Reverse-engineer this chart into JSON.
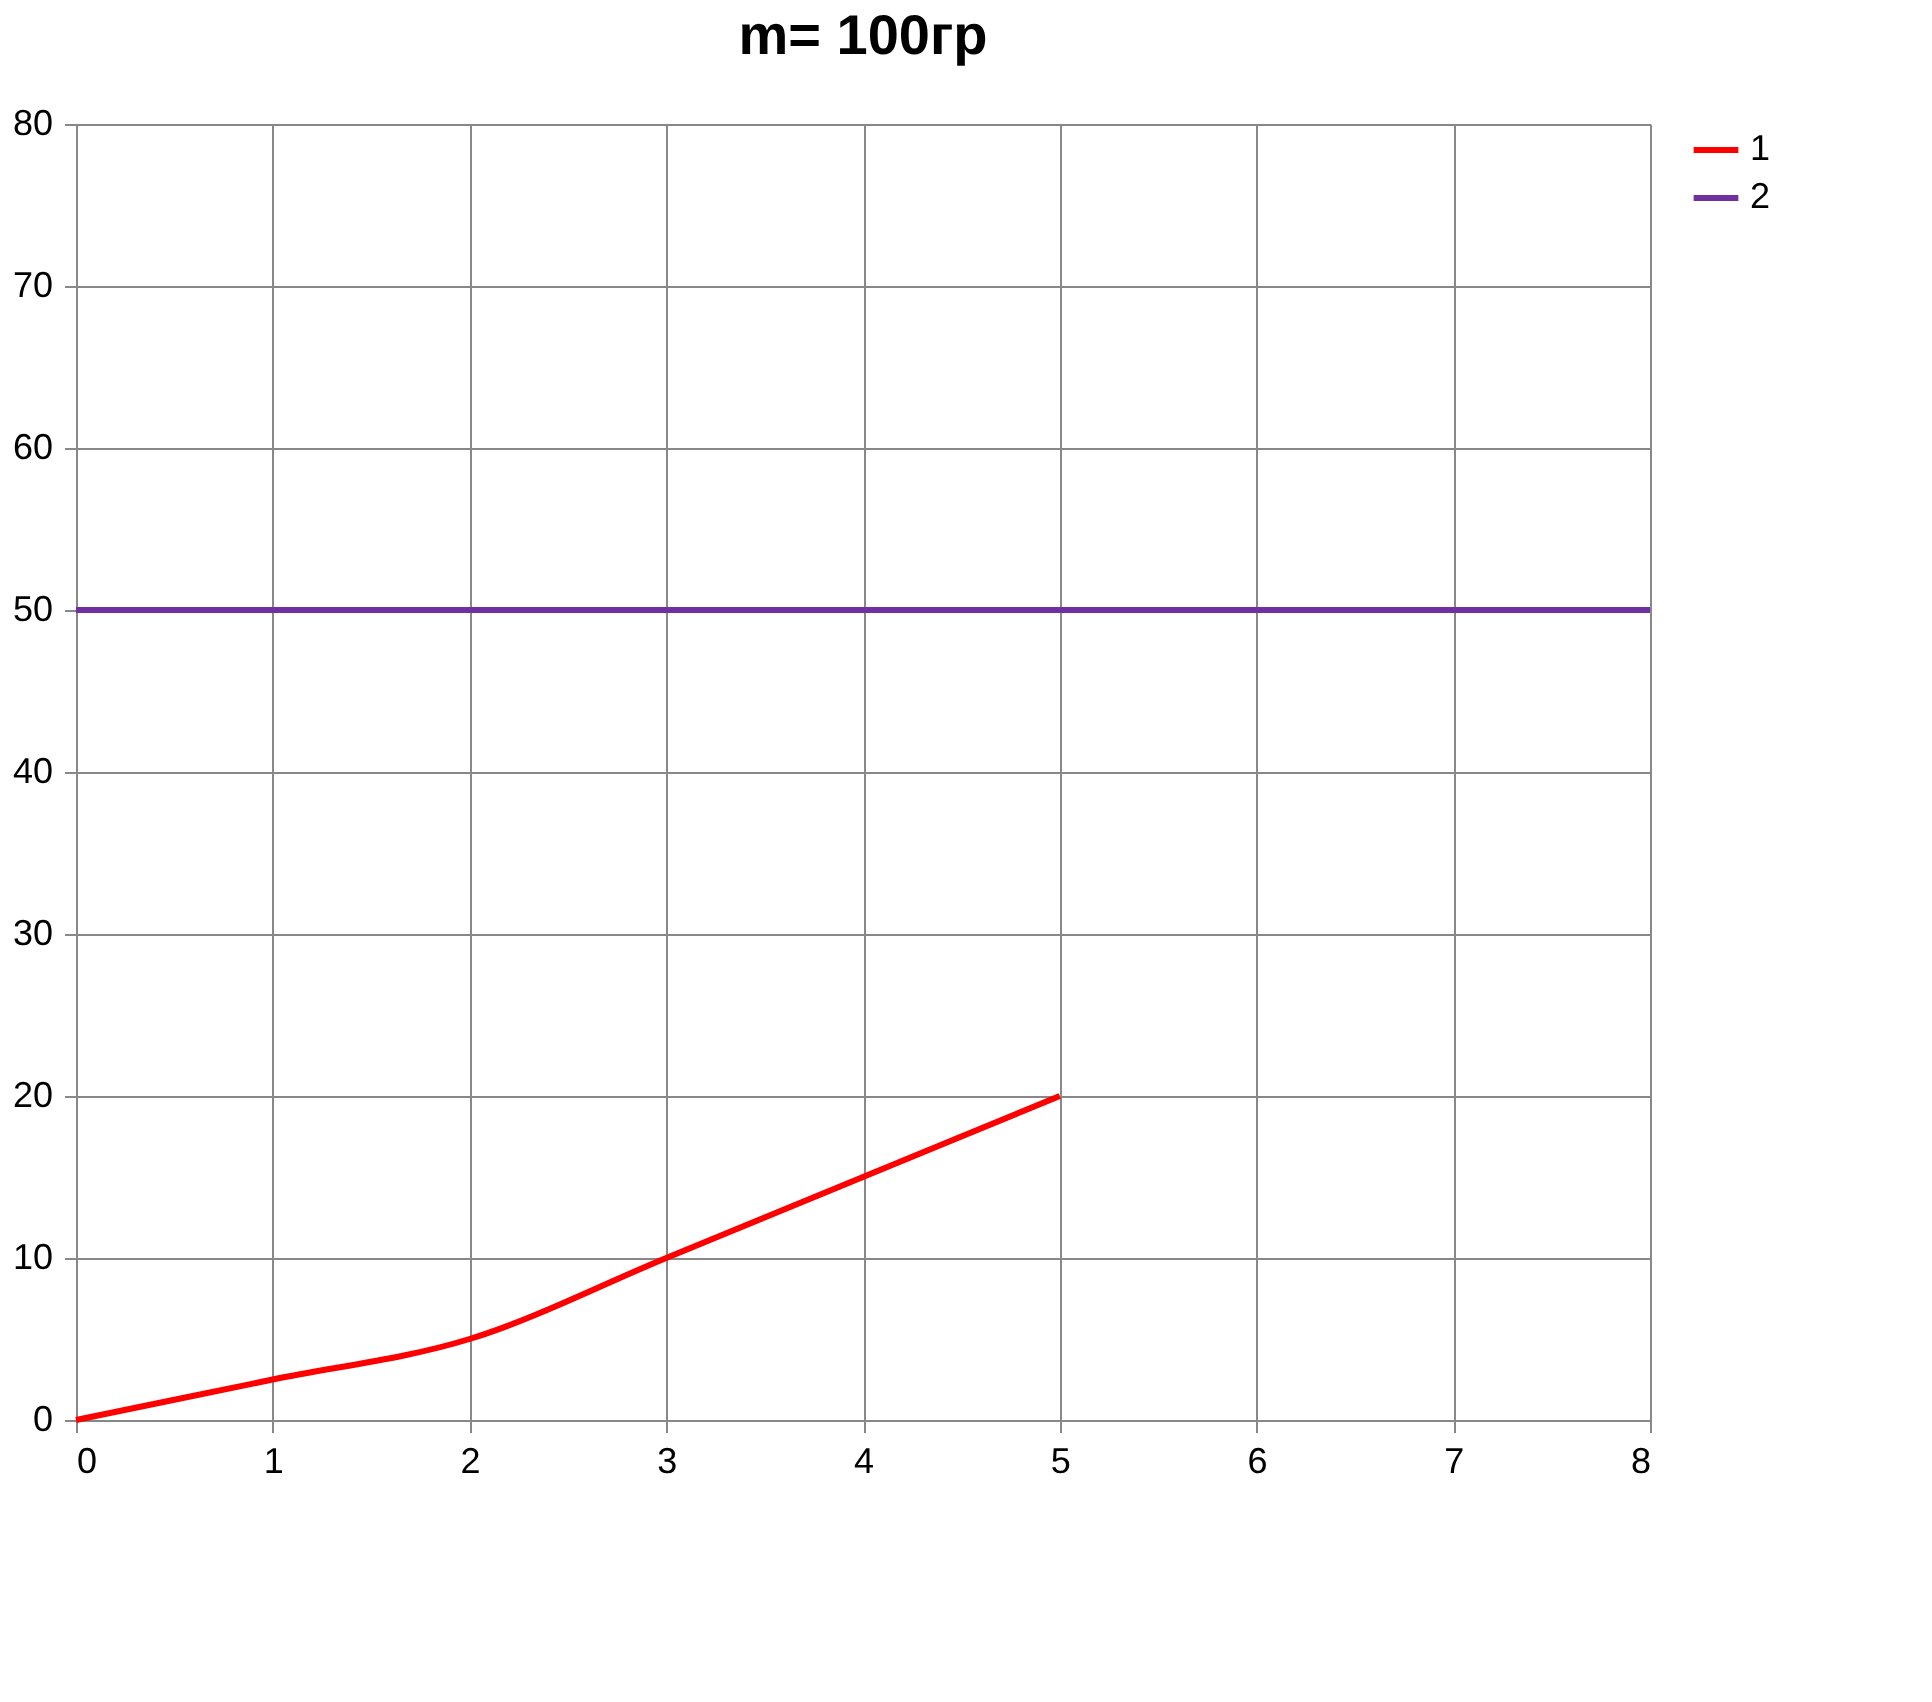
{
  "chart_data": {
    "type": "line",
    "title": "m= 100гр",
    "xlim": [
      0,
      8
    ],
    "xticks": [
      0,
      1,
      2,
      3,
      4,
      5,
      6,
      7,
      8
    ],
    "ylim": [
      0,
      80
    ],
    "yticks": [
      0,
      10,
      20,
      30,
      40,
      50,
      60,
      70,
      80
    ],
    "grid": true,
    "legend": "right",
    "marker": "none",
    "line_style": "solid",
    "series": [
      {
        "name": "1",
        "color": "#ff0000",
        "x": [
          0,
          1,
          2,
          3,
          4,
          5
        ],
        "values": [
          0,
          2.5,
          5,
          10,
          15,
          20
        ]
      },
      {
        "name": "2",
        "color": "#7030a0",
        "x": [
          0,
          1,
          2,
          3,
          4,
          5,
          6,
          7,
          8
        ],
        "values": [
          50,
          50,
          50,
          50,
          50,
          50,
          50,
          50,
          50
        ]
      }
    ]
  }
}
